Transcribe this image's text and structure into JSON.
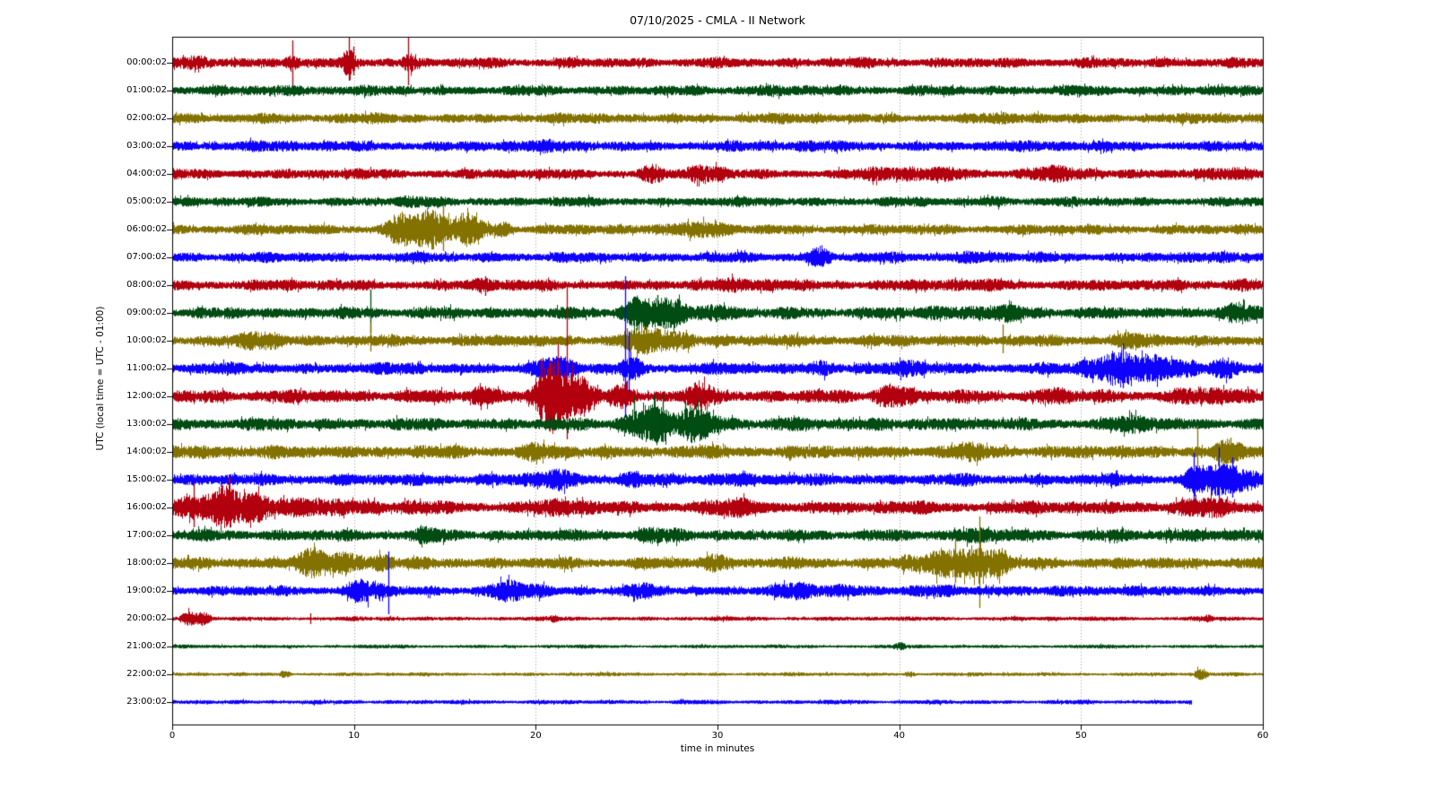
{
  "chart_data": {
    "type": "seismogram_dayplot",
    "title": "07/10/2025 - CMLA - II Network",
    "date": "07/10/2025",
    "station": "CMLA",
    "network": "II",
    "xlabel": "time in minutes",
    "ylabel": "UTC (local time = UTC - 01:00)",
    "x_range": [
      0,
      60
    ],
    "x_ticks": [
      "0",
      "10",
      "20",
      "30",
      "40",
      "50",
      "60"
    ],
    "x_grid_minutes": [
      10,
      20,
      30,
      40,
      50
    ],
    "grid_style": "dotted",
    "color_cycle": [
      "#B2000F",
      "#004C12",
      "#847200",
      "#0E01FF"
    ],
    "rows": [
      {
        "label": "00:00:02",
        "color": "#B2000F",
        "base_amp": 7,
        "end_min": 60,
        "bursts": [
          {
            "t": 0.8,
            "w": 1.0,
            "a": 3
          },
          {
            "t": 6.6,
            "w": 0.5,
            "a": 10
          },
          {
            "t": 9.7,
            "w": 0.4,
            "a": 10
          },
          {
            "t": 13.0,
            "w": 0.45,
            "a": 10
          }
        ],
        "spikes": [
          {
            "t": 6.6,
            "up": 25,
            "dn": 27
          },
          {
            "t": 9.7,
            "up": 32,
            "dn": 20
          },
          {
            "t": 9.95,
            "up": 18,
            "dn": 14
          },
          {
            "t": 13.0,
            "up": 28,
            "dn": 25
          }
        ]
      },
      {
        "label": "01:00:02",
        "color": "#004C12",
        "base_amp": 7,
        "end_min": 60,
        "bursts": [
          {
            "t": 8,
            "w": 3,
            "a": 1.5
          },
          {
            "t": 33,
            "w": 3,
            "a": 1.5
          }
        ],
        "spikes": []
      },
      {
        "label": "02:00:02",
        "color": "#847200",
        "base_amp": 7,
        "end_min": 60,
        "bursts": [
          {
            "t": 5,
            "w": 2,
            "a": 1.5
          },
          {
            "t": 47,
            "w": 3,
            "a": 1
          }
        ],
        "spikes": []
      },
      {
        "label": "03:00:02",
        "color": "#0E01FF",
        "base_amp": 7.5,
        "end_min": 60,
        "bursts": [
          {
            "t": 20,
            "w": 3,
            "a": 1
          }
        ],
        "spikes": []
      },
      {
        "label": "04:00:02",
        "color": "#B2000F",
        "base_amp": 7,
        "end_min": 60,
        "bursts": [
          {
            "t": 26.3,
            "w": 0.9,
            "a": 7
          },
          {
            "t": 29.4,
            "w": 1.3,
            "a": 8
          },
          {
            "t": 41,
            "w": 3.5,
            "a": 5
          },
          {
            "t": 48.5,
            "w": 2.5,
            "a": 4
          },
          {
            "t": 57,
            "w": 2,
            "a": 3
          }
        ],
        "spikes": []
      },
      {
        "label": "05:00:02",
        "color": "#004C12",
        "base_amp": 6.5,
        "end_min": 60,
        "bursts": [
          {
            "t": 14,
            "w": 2,
            "a": 1.5
          },
          {
            "t": 45.5,
            "w": 1.2,
            "a": 3
          }
        ],
        "spikes": []
      },
      {
        "label": "06:00:02",
        "color": "#847200",
        "base_amp": 7,
        "end_min": 60,
        "bursts": [
          {
            "t": 12.2,
            "w": 1.2,
            "a": 8
          },
          {
            "t": 13.4,
            "w": 1.6,
            "a": 13
          },
          {
            "t": 15.0,
            "w": 1.8,
            "a": 15
          },
          {
            "t": 16.6,
            "w": 1.2,
            "a": 9
          },
          {
            "t": 18.2,
            "w": 0.6,
            "a": 7
          },
          {
            "t": 27.9,
            "w": 1.6,
            "a": 8
          },
          {
            "t": 29.6,
            "w": 1.0,
            "a": 6
          }
        ],
        "spikes": [
          {
            "t": 14.9,
            "up": 28,
            "dn": 24
          }
        ]
      },
      {
        "label": "07:00:02",
        "color": "#0E01FF",
        "base_amp": 7,
        "end_min": 60,
        "bursts": [
          {
            "t": 35.6,
            "w": 0.9,
            "a": 8
          },
          {
            "t": 44,
            "w": 2.5,
            "a": 3
          },
          {
            "t": 58.5,
            "w": 1.5,
            "a": 3
          }
        ],
        "spikes": []
      },
      {
        "label": "08:00:02",
        "color": "#B2000F",
        "base_amp": 7.5,
        "end_min": 60,
        "bursts": [
          {
            "t": 17.2,
            "w": 0.8,
            "a": 5
          },
          {
            "t": 32.5,
            "w": 3,
            "a": 3
          },
          {
            "t": 44,
            "w": 3,
            "a": 2
          },
          {
            "t": 58.6,
            "w": 1,
            "a": 5
          }
        ],
        "spikes": [
          {
            "t": 17.2,
            "up": 10,
            "dn": 12
          }
        ]
      },
      {
        "label": "09:00:02",
        "color": "#004C12",
        "base_amp": 8,
        "end_min": 60,
        "bursts": [
          {
            "t": 25.1,
            "w": 0.9,
            "a": 10
          },
          {
            "t": 26.9,
            "w": 2.3,
            "a": 14
          },
          {
            "t": 30,
            "w": 1.5,
            "a": 6
          },
          {
            "t": 44,
            "w": 4.5,
            "a": 4
          },
          {
            "t": 59,
            "w": 1.2,
            "a": 7
          }
        ],
        "spikes": [
          {
            "t": 10.9,
            "up": 26,
            "dn": 22
          },
          {
            "t": 26.7,
            "up": 20,
            "dn": 12
          }
        ]
      },
      {
        "label": "10:00:02",
        "color": "#847200",
        "base_amp": 8,
        "end_min": 60,
        "bursts": [
          {
            "t": 4.9,
            "w": 1.3,
            "a": 9
          },
          {
            "t": 26.0,
            "w": 1.6,
            "a": 9
          },
          {
            "t": 27.7,
            "w": 1.4,
            "a": 10
          },
          {
            "t": 53,
            "w": 1.6,
            "a": 4
          }
        ],
        "spikes": [
          {
            "t": 10.9,
            "up": 20,
            "dn": 12
          },
          {
            "t": 25.0,
            "up": 14,
            "dn": 10
          },
          {
            "t": 45.7,
            "up": 18,
            "dn": 14
          }
        ]
      },
      {
        "label": "11:00:02",
        "color": "#0E01FF",
        "base_amp": 8,
        "end_min": 60,
        "bursts": [
          {
            "t": 20.9,
            "w": 1.6,
            "a": 8
          },
          {
            "t": 25.2,
            "w": 0.8,
            "a": 10
          },
          {
            "t": 35.9,
            "w": 1.1,
            "a": 7
          },
          {
            "t": 40.7,
            "w": 0.9,
            "a": 7
          },
          {
            "t": 52.6,
            "w": 3.0,
            "a": 17
          },
          {
            "t": 55.0,
            "w": 1.6,
            "a": 9
          },
          {
            "t": 57.9,
            "w": 1.0,
            "a": 7
          }
        ],
        "spikes": [
          {
            "t": 24.9,
            "up": 103,
            "dn": 55
          },
          {
            "t": 25.1,
            "up": 40,
            "dn": 35
          },
          {
            "t": 52.3,
            "up": 28,
            "dn": 22
          }
        ]
      },
      {
        "label": "12:00:02",
        "color": "#B2000F",
        "base_amp": 9,
        "end_min": 60,
        "bursts": [
          {
            "t": 17.3,
            "w": 1.1,
            "a": 7
          },
          {
            "t": 20.5,
            "w": 1.2,
            "a": 16
          },
          {
            "t": 21.5,
            "w": 1.6,
            "a": 24
          },
          {
            "t": 22.8,
            "w": 1.0,
            "a": 12
          },
          {
            "t": 24.6,
            "w": 0.9,
            "a": 10
          },
          {
            "t": 29.3,
            "w": 1.3,
            "a": 9
          },
          {
            "t": 39.6,
            "w": 1.4,
            "a": 11
          },
          {
            "t": 48.5,
            "w": 1.0,
            "a": 5
          },
          {
            "t": 57,
            "w": 2.5,
            "a": 4
          }
        ],
        "spikes": [
          {
            "t": 21.7,
            "up": 123,
            "dn": 48
          },
          {
            "t": 20.3,
            "up": 42,
            "dn": 30
          },
          {
            "t": 21.2,
            "up": 60,
            "dn": 35
          }
        ]
      },
      {
        "label": "13:00:02",
        "color": "#004C12",
        "base_amp": 8.5,
        "end_min": 60,
        "bursts": [
          {
            "t": 25.8,
            "w": 1.6,
            "a": 10
          },
          {
            "t": 27.2,
            "w": 2.4,
            "a": 14
          },
          {
            "t": 29.0,
            "w": 1.3,
            "a": 11
          },
          {
            "t": 33.6,
            "w": 1.2,
            "a": 5
          },
          {
            "t": 41.5,
            "w": 1.2,
            "a": 4
          },
          {
            "t": 53,
            "w": 1.8,
            "a": 5
          }
        ],
        "spikes": [
          {
            "t": 25.4,
            "up": 30,
            "dn": 14
          },
          {
            "t": 27.0,
            "up": 34,
            "dn": 16
          },
          {
            "t": 28.2,
            "up": 24,
            "dn": 12
          }
        ]
      },
      {
        "label": "14:00:02",
        "color": "#847200",
        "base_amp": 9,
        "end_min": 60,
        "bursts": [
          {
            "t": 2.5,
            "w": 1.2,
            "a": 4
          },
          {
            "t": 20,
            "w": 1.2,
            "a": 4
          },
          {
            "t": 44,
            "w": 2,
            "a": 3
          },
          {
            "t": 58,
            "w": 1,
            "a": 7
          }
        ],
        "spikes": [
          {
            "t": 56.4,
            "up": 28,
            "dn": 20
          },
          {
            "t": 58.2,
            "up": 16,
            "dn": 12
          }
        ]
      },
      {
        "label": "15:00:02",
        "color": "#0E01FF",
        "base_amp": 8,
        "end_min": 60,
        "bursts": [
          {
            "t": 20.9,
            "w": 1.8,
            "a": 8
          },
          {
            "t": 25.1,
            "w": 0.8,
            "a": 6
          },
          {
            "t": 31.5,
            "w": 2.2,
            "a": 4
          },
          {
            "t": 57.2,
            "w": 1.8,
            "a": 18
          },
          {
            "t": 58.9,
            "w": 0.9,
            "a": 10
          }
        ],
        "spikes": [
          {
            "t": 56.2,
            "up": 30,
            "dn": 26
          },
          {
            "t": 57.6,
            "up": 36,
            "dn": 30
          },
          {
            "t": 58.3,
            "up": 25,
            "dn": 20
          }
        ]
      },
      {
        "label": "16:00:02",
        "color": "#B2000F",
        "base_amp": 9,
        "end_min": 60,
        "bursts": [
          {
            "t": 1.6,
            "w": 2.0,
            "a": 19
          },
          {
            "t": 3.8,
            "w": 1.6,
            "a": 13
          },
          {
            "t": 6.5,
            "w": 2.0,
            "a": 8
          },
          {
            "t": 9.5,
            "w": 2.5,
            "a": 5
          },
          {
            "t": 21.5,
            "w": 2.2,
            "a": 4
          },
          {
            "t": 31,
            "w": 1.8,
            "a": 4
          },
          {
            "t": 56.5,
            "w": 2,
            "a": 5
          }
        ],
        "spikes": [
          {
            "t": 1.2,
            "up": 26,
            "dn": 22
          }
        ]
      },
      {
        "label": "17:00:02",
        "color": "#004C12",
        "base_amp": 8,
        "end_min": 60,
        "bursts": [
          {
            "t": 14,
            "w": 1.8,
            "a": 3
          },
          {
            "t": 27,
            "w": 1.8,
            "a": 3
          },
          {
            "t": 44.3,
            "w": 1.8,
            "a": 5
          },
          {
            "t": 56,
            "w": 2,
            "a": 2
          }
        ],
        "spikes": []
      },
      {
        "label": "18:00:02",
        "color": "#847200",
        "base_amp": 8,
        "end_min": 60,
        "bursts": [
          {
            "t": 7.4,
            "w": 1.1,
            "a": 11
          },
          {
            "t": 9.6,
            "w": 2.6,
            "a": 8
          },
          {
            "t": 11.5,
            "w": 0.8,
            "a": 7
          },
          {
            "t": 29.8,
            "w": 1.1,
            "a": 6
          },
          {
            "t": 40.8,
            "w": 0.8,
            "a": 8
          },
          {
            "t": 43.6,
            "w": 2.6,
            "a": 19
          },
          {
            "t": 45.2,
            "w": 1.0,
            "a": 11
          }
        ],
        "spikes": [
          {
            "t": 44.4,
            "up": 52,
            "dn": 50
          },
          {
            "t": 43.1,
            "up": 28,
            "dn": 22
          }
        ]
      },
      {
        "label": "19:00:02",
        "color": "#0E01FF",
        "base_amp": 7,
        "end_min": 60,
        "bursts": [
          {
            "t": 10.6,
            "w": 1.6,
            "a": 8
          },
          {
            "t": 18.9,
            "w": 2.2,
            "a": 7
          },
          {
            "t": 25.6,
            "w": 0.9,
            "a": 5
          },
          {
            "t": 35.5,
            "w": 3.0,
            "a": 6
          },
          {
            "t": 43,
            "w": 2.2,
            "a": 3
          },
          {
            "t": 51.5,
            "w": 2,
            "a": 2
          }
        ],
        "spikes": [
          {
            "t": 11.9,
            "up": 44,
            "dn": 26
          }
        ]
      },
      {
        "label": "20:00:02",
        "color": "#B2000F",
        "base_amp": 3,
        "end_min": 60,
        "bursts": [
          {
            "t": 0.9,
            "w": 0.55,
            "a": 9
          },
          {
            "t": 1.7,
            "w": 0.5,
            "a": 7
          },
          {
            "t": 21,
            "w": 0.3,
            "a": 3
          },
          {
            "t": 57,
            "w": 0.3,
            "a": 3
          }
        ],
        "spikes": [
          {
            "t": 7.6,
            "up": 6,
            "dn": 6
          }
        ]
      },
      {
        "label": "21:00:02",
        "color": "#004C12",
        "base_amp": 2.5,
        "end_min": 60,
        "bursts": [
          {
            "t": 40,
            "w": 0.4,
            "a": 4
          }
        ],
        "spikes": []
      },
      {
        "label": "22:00:02",
        "color": "#847200",
        "base_amp": 2.5,
        "end_min": 60,
        "bursts": [
          {
            "t": 6.2,
            "w": 0.4,
            "a": 5
          },
          {
            "t": 40.6,
            "w": 0.35,
            "a": 4
          },
          {
            "t": 56.6,
            "w": 0.45,
            "a": 6
          }
        ],
        "spikes": []
      },
      {
        "label": "23:00:02",
        "color": "#0E01FF",
        "base_amp": 3,
        "end_min": 56.1,
        "bursts": [],
        "spikes": []
      }
    ]
  }
}
